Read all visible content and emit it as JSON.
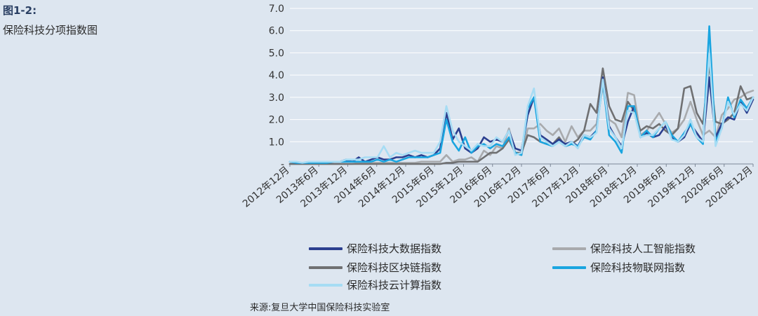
{
  "figure": {
    "number": "图1-2:",
    "title": "保险科技分项指数图",
    "source": "来源:复旦大学中国保险科技实验室"
  },
  "chart_data": {
    "type": "line",
    "ylim": [
      0,
      7
    ],
    "y_ticks": [
      "-",
      "1.0",
      "2.0",
      "3.0",
      "4.0",
      "5.0",
      "6.0",
      "7.0"
    ],
    "x_tick_labels": [
      "2012年12月",
      "2013年6月",
      "2013年12月",
      "2014年6月",
      "2014年12月",
      "2015年6月",
      "2015年12月",
      "2016年6月",
      "2016年12月",
      "2017年6月",
      "2017年12月",
      "2018年6月",
      "2018年12月",
      "2019年6月",
      "2019年12月",
      "2020年6月",
      "2020年12月"
    ],
    "grid": true,
    "legend_position": "bottom",
    "series": [
      {
        "name": "保险科技大数据指数",
        "color": "#2b3f8f",
        "values": [
          0.1,
          0.05,
          0.05,
          0.05,
          0.1,
          0.1,
          0.05,
          0.1,
          0.1,
          0.2,
          0.1,
          0.3,
          0.1,
          0.2,
          0.3,
          0.2,
          0.2,
          0.3,
          0.3,
          0.4,
          0.3,
          0.4,
          0.3,
          0.4,
          0.7,
          2.3,
          1.1,
          1.6,
          0.7,
          0.5,
          0.7,
          1.2,
          1.0,
          1.1,
          1.0,
          1.5,
          0.7,
          0.6,
          2.2,
          3.0,
          1.3,
          1.1,
          0.9,
          1.1,
          0.9,
          1.0,
          0.8,
          1.3,
          1.2,
          1.5,
          3.9,
          1.7,
          1.2,
          0.8,
          1.9,
          2.6,
          1.2,
          1.4,
          1.2,
          1.3,
          1.7,
          1.2,
          1.0,
          1.2,
          1.8,
          1.4,
          1.0,
          3.9,
          1.2,
          1.8,
          2.1,
          2.0,
          2.8,
          2.3,
          2.9
        ]
      },
      {
        "name": "保险科技人工智能指数",
        "color": "#a8aaad",
        "values": [
          0,
          0,
          0,
          0,
          0,
          0,
          0,
          0,
          0,
          0,
          0,
          0.05,
          0.05,
          0.05,
          0.05,
          0.05,
          0.05,
          0.05,
          0.05,
          0.05,
          0.05,
          0.1,
          0.1,
          0.1,
          0.1,
          0.4,
          0.1,
          0.2,
          0.2,
          0.3,
          0.1,
          0.6,
          0.4,
          0.8,
          0.7,
          1.6,
          0.5,
          0.4,
          1.6,
          1.6,
          1.8,
          1.5,
          1.3,
          1.6,
          1.0,
          1.7,
          1.2,
          1.5,
          1.5,
          1.8,
          3.5,
          2.0,
          1.8,
          1.2,
          3.2,
          3.1,
          1.3,
          1.5,
          1.9,
          2.3,
          1.8,
          1.4,
          1.6,
          2.0,
          2.8,
          2.0,
          1.3,
          1.5,
          1.2,
          2.2,
          2.5,
          2.9,
          3.0,
          3.2,
          3.3
        ]
      },
      {
        "name": "保险科技区块链指数",
        "color": "#6f7072",
        "values": [
          0,
          0,
          0,
          0,
          0,
          0,
          0,
          0,
          0,
          0,
          0,
          0,
          0,
          0,
          0,
          0,
          0,
          0,
          0,
          0,
          0,
          0,
          0,
          0,
          0,
          0.05,
          0.05,
          0.1,
          0.1,
          0.1,
          0.1,
          0.3,
          0.5,
          0.5,
          0.7,
          1.1,
          0.5,
          0.5,
          1.3,
          1.2,
          1.0,
          0.9,
          0.9,
          1.2,
          0.8,
          0.9,
          1.1,
          1.5,
          2.7,
          2.3,
          4.3,
          2.6,
          2.0,
          1.9,
          2.8,
          2.4,
          1.5,
          1.7,
          1.6,
          1.8,
          1.5,
          1.3,
          1.6,
          3.4,
          3.5,
          2.3,
          1.8,
          4.5,
          1.9,
          1.8,
          2.0,
          2.3,
          3.5,
          2.9,
          3.0
        ]
      },
      {
        "name": "保险科技物联网指数",
        "color": "#1aa5e0",
        "values": [
          0.1,
          0.05,
          0.05,
          0.05,
          0.05,
          0.05,
          0.05,
          0.1,
          0.1,
          0.1,
          0.1,
          0.1,
          0.1,
          0.1,
          0.2,
          0.1,
          0.2,
          0.1,
          0.2,
          0.3,
          0.3,
          0.3,
          0.3,
          0.4,
          0.5,
          2.0,
          1.0,
          0.6,
          1.2,
          0.5,
          0.8,
          0.9,
          0.7,
          0.9,
          0.8,
          1.2,
          0.5,
          0.4,
          2.5,
          3.0,
          1.0,
          0.9,
          0.8,
          1.0,
          0.8,
          0.9,
          0.8,
          1.2,
          1.1,
          1.5,
          3.7,
          1.3,
          1.0,
          0.5,
          2.6,
          2.6,
          1.2,
          1.5,
          1.2,
          1.6,
          1.9,
          1.3,
          1.0,
          1.4,
          1.8,
          1.2,
          0.9,
          6.2,
          1.0,
          1.6,
          3.0,
          2.1,
          2.9,
          2.5,
          3.0
        ]
      },
      {
        "name": "保险科技云计算指数",
        "color": "#a6dcf4",
        "values": [
          0.1,
          0.1,
          0.05,
          0.1,
          0.1,
          0.1,
          0.1,
          0.1,
          0.1,
          0.2,
          0.2,
          0.2,
          0.3,
          0.3,
          0.3,
          0.8,
          0.3,
          0.5,
          0.4,
          0.5,
          0.6,
          0.5,
          0.5,
          0.5,
          1.0,
          2.6,
          1.5,
          1.0,
          0.8,
          0.6,
          0.9,
          0.8,
          0.8,
          1.2,
          1.0,
          1.5,
          0.4,
          0.5,
          2.6,
          3.4,
          1.2,
          1.0,
          0.8,
          1.0,
          0.8,
          1.0,
          0.7,
          1.3,
          1.2,
          1.4,
          3.8,
          1.6,
          1.2,
          0.7,
          2.4,
          2.3,
          1.2,
          1.3,
          1.3,
          1.6,
          1.9,
          1.1,
          1.0,
          1.3,
          2.0,
          1.2,
          1.0,
          5.0,
          0.8,
          1.6,
          2.8,
          2.2,
          2.7,
          2.4,
          3.0
        ]
      }
    ]
  }
}
